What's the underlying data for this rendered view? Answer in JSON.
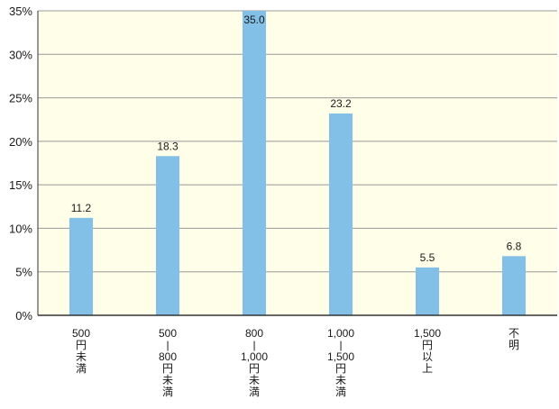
{
  "chart_data": {
    "type": "bar",
    "title": "",
    "xlabel": "",
    "ylabel": "",
    "categories": [
      [
        "500",
        "円",
        "未",
        "満"
      ],
      [
        "500",
        "|",
        "800",
        "円",
        "未",
        "満"
      ],
      [
        "800",
        "|",
        "1,000",
        "円",
        "未",
        "満"
      ],
      [
        "1,000",
        "|",
        "1,500",
        "円",
        "未",
        "満"
      ],
      [
        "1,500",
        "円",
        "以",
        "上"
      ],
      [
        "不",
        "明"
      ]
    ],
    "values": [
      11.2,
      18.3,
      35.0,
      23.2,
      5.5,
      6.8
    ],
    "value_labels": [
      "11.2",
      "18.3",
      "35.0",
      "23.2",
      "5.5",
      "6.8"
    ],
    "ylim": [
      0,
      35
    ],
    "yticks": [
      0,
      5,
      10,
      15,
      20,
      25,
      30,
      35
    ],
    "ytick_labels": [
      "0%",
      "5%",
      "10%",
      "15%",
      "20%",
      "25%",
      "30%",
      "35%"
    ],
    "grid": true,
    "legend": "none",
    "colors": {
      "bar": "#82c0e8",
      "plot_background": "#fffee8",
      "grid": "#999999",
      "axis": "#333333"
    }
  }
}
